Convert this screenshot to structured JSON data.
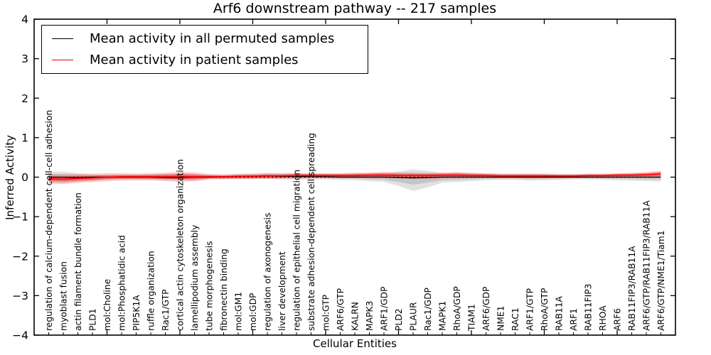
{
  "title": "Arf6 downstream pathway -- 217 samples",
  "legend": {
    "items": [
      {
        "label": "Mean activity in all permuted samples",
        "color": "#000000"
      },
      {
        "label": "Mean activity in patient samples",
        "color": "#ff0000"
      }
    ]
  },
  "chart_data": {
    "type": "line",
    "title": "Arf6 downstream pathway -- 217 samples",
    "xlabel": "Cellular Entities",
    "ylabel": "Inferred Activity",
    "ylim": [
      -4,
      4
    ],
    "yticks": [
      -4,
      -3,
      -2,
      -1,
      0,
      1,
      2,
      3,
      4
    ],
    "grid": false,
    "legend_position": "upper left",
    "categories": [
      "regulation of calcium-dependent cell-cell adhesion",
      "myoblast fusion",
      "actin filament bundle formation",
      "PLD1",
      "mol:Choline",
      "mol:Phosphatidic acid",
      "PIP5K1A",
      "ruffle organization",
      "Rac1/GTP",
      "cortical actin cytoskeleton organization",
      "lamellipodium assembly",
      "tube morphogenesis",
      "fibronectin binding",
      "mol:GM1",
      "mol:GDP",
      "regulation of axonogenesis",
      "liver development",
      "regulation of epithelial cell migration",
      "substrate adhesion-dependent cell spreading",
      "mol:GTP",
      "ARF6/GTP",
      "KALRN",
      "MAPK3",
      "ARF1/GDP",
      "PLD2",
      "PLAUR",
      "Rac1/GDP",
      "MAPK1",
      "RhoA/GDP",
      "TIAM1",
      "ARF6/GDP",
      "NME1",
      "RAC1",
      "ARF1/GTP",
      "RhoA/GTP",
      "RAB11A",
      "ARF1",
      "RAB11FIP3",
      "RHOA",
      "ARF6",
      "RAB11FIP3/RAB11A",
      "ARF6/GTP/RAB11FIP3/RAB11A",
      "ARF6/GTP/NME1/Tiam1"
    ],
    "series": [
      {
        "name": "Mean activity in all permuted samples",
        "color": "#000000",
        "width": 1.2,
        "values": [
          0,
          0,
          -0.01,
          0,
          0,
          0,
          0,
          0,
          -0.01,
          -0.01,
          0,
          0,
          0.01,
          0.02,
          0.02,
          0.03,
          0.02,
          0.02,
          0.01,
          0.01,
          0,
          0,
          0,
          0,
          -0.01,
          -0.02,
          -0.01,
          0,
          0,
          0,
          0,
          0,
          0,
          0,
          0,
          0,
          0,
          0,
          0,
          0,
          0,
          0,
          0
        ]
      },
      {
        "name": "Mean activity in patient samples",
        "color": "#ff0000",
        "width": 1.6,
        "values": [
          -0.04,
          -0.05,
          -0.03,
          -0.02,
          0,
          0.01,
          0.01,
          0.01,
          0.01,
          0.01,
          0.01,
          0.01,
          0.01,
          0.02,
          0.02,
          0.03,
          0.03,
          0.04,
          0.04,
          0.04,
          0.04,
          0.04,
          0.05,
          0.05,
          0.04,
          0.04,
          0.04,
          0.05,
          0.05,
          0.04,
          0.04,
          0.03,
          0.03,
          0.03,
          0.03,
          0.03,
          0.03,
          0.04,
          0.04,
          0.05,
          0.05,
          0.06,
          0.08
        ]
      }
    ],
    "bands": [
      {
        "name": "permuted-spread-outer",
        "color": "#aaaaaa",
        "opacity": 0.35,
        "upper": [
          0.13,
          0.14,
          0.1,
          0.07,
          0.06,
          0.06,
          0.06,
          0.07,
          0.08,
          0.09,
          0.08,
          0.06,
          0.06,
          0.08,
          0.08,
          0.1,
          0.09,
          0.08,
          0.07,
          0.07,
          0.07,
          0.08,
          0.09,
          0.1,
          0.14,
          0.2,
          0.16,
          0.1,
          0.1,
          0.09,
          0.08,
          0.07,
          0.07,
          0.08,
          0.07,
          0.06,
          0.06,
          0.06,
          0.06,
          0.07,
          0.08,
          0.09,
          0.1
        ],
        "lower": [
          -0.15,
          -0.16,
          -0.12,
          -0.08,
          -0.07,
          -0.06,
          -0.06,
          -0.07,
          -0.08,
          -0.09,
          -0.08,
          -0.05,
          -0.05,
          -0.05,
          -0.05,
          -0.05,
          -0.06,
          -0.06,
          -0.06,
          -0.06,
          -0.07,
          -0.08,
          -0.1,
          -0.12,
          -0.22,
          -0.35,
          -0.26,
          -0.14,
          -0.12,
          -0.1,
          -0.08,
          -0.07,
          -0.07,
          -0.09,
          -0.08,
          -0.07,
          -0.06,
          -0.06,
          -0.07,
          -0.08,
          -0.09,
          -0.1,
          -0.11
        ]
      },
      {
        "name": "permuted-spread-inner",
        "color": "#9a9a9a",
        "opacity": 0.4,
        "upper": [
          0.07,
          0.08,
          0.06,
          0.04,
          0.03,
          0.03,
          0.03,
          0.04,
          0.04,
          0.05,
          0.04,
          0.03,
          0.03,
          0.04,
          0.04,
          0.06,
          0.05,
          0.04,
          0.04,
          0.04,
          0.04,
          0.04,
          0.05,
          0.06,
          0.08,
          0.11,
          0.09,
          0.06,
          0.06,
          0.05,
          0.04,
          0.04,
          0.04,
          0.04,
          0.04,
          0.03,
          0.03,
          0.03,
          0.03,
          0.04,
          0.04,
          0.05,
          0.06
        ],
        "lower": [
          -0.08,
          -0.09,
          -0.07,
          -0.04,
          -0.04,
          -0.03,
          -0.03,
          -0.04,
          -0.04,
          -0.05,
          -0.04,
          -0.03,
          -0.03,
          -0.03,
          -0.03,
          -0.03,
          -0.03,
          -0.03,
          -0.03,
          -0.03,
          -0.04,
          -0.04,
          -0.06,
          -0.07,
          -0.12,
          -0.19,
          -0.14,
          -0.08,
          -0.07,
          -0.06,
          -0.04,
          -0.04,
          -0.04,
          -0.05,
          -0.04,
          -0.04,
          -0.03,
          -0.03,
          -0.04,
          -0.04,
          -0.05,
          -0.06,
          -0.06
        ]
      },
      {
        "name": "patient-spread-outer",
        "color": "#ff5555",
        "opacity": 0.3,
        "upper": [
          0.08,
          0.07,
          0.08,
          0.09,
          0.1,
          0.1,
          0.09,
          0.1,
          0.11,
          0.13,
          0.12,
          0.08,
          0.07,
          0.08,
          0.09,
          0.1,
          0.1,
          0.11,
          0.1,
          0.1,
          0.1,
          0.11,
          0.12,
          0.13,
          0.12,
          0.11,
          0.11,
          0.12,
          0.13,
          0.11,
          0.1,
          0.09,
          0.09,
          0.09,
          0.09,
          0.08,
          0.08,
          0.09,
          0.09,
          0.1,
          0.11,
          0.13,
          0.16
        ],
        "lower": [
          -0.16,
          -0.17,
          -0.14,
          -0.13,
          -0.1,
          -0.09,
          -0.08,
          -0.08,
          -0.1,
          -0.12,
          -0.11,
          -0.06,
          -0.05,
          -0.05,
          -0.04,
          -0.04,
          -0.04,
          -0.03,
          -0.03,
          -0.02,
          -0.02,
          -0.02,
          -0.02,
          -0.02,
          -0.03,
          -0.05,
          -0.05,
          -0.03,
          -0.02,
          -0.02,
          -0.02,
          -0.02,
          -0.02,
          -0.03,
          -0.03,
          -0.02,
          -0.02,
          -0.01,
          -0.01,
          -0.01,
          -0.01,
          0.0,
          0.0
        ]
      },
      {
        "name": "patient-spread-inner",
        "color": "#ee2222",
        "opacity": 0.45,
        "upper": [
          0.02,
          0.01,
          0.03,
          0.04,
          0.05,
          0.06,
          0.06,
          0.06,
          0.07,
          0.08,
          0.07,
          0.05,
          0.04,
          0.05,
          0.06,
          0.07,
          0.07,
          0.08,
          0.08,
          0.08,
          0.08,
          0.09,
          0.09,
          0.1,
          0.09,
          0.08,
          0.08,
          0.09,
          0.1,
          0.09,
          0.08,
          0.07,
          0.07,
          0.07,
          0.07,
          0.06,
          0.06,
          0.07,
          0.07,
          0.08,
          0.09,
          0.1,
          0.13
        ],
        "lower": [
          -0.1,
          -0.11,
          -0.09,
          -0.08,
          -0.05,
          -0.04,
          -0.04,
          -0.04,
          -0.05,
          -0.06,
          -0.06,
          -0.03,
          -0.03,
          -0.02,
          -0.02,
          -0.01,
          -0.01,
          0.0,
          0.0,
          0.0,
          0.0,
          0.0,
          0.0,
          0.01,
          0.0,
          -0.01,
          -0.01,
          0.0,
          0.01,
          0.0,
          0.0,
          0.0,
          0.0,
          -0.01,
          -0.01,
          0.0,
          0.0,
          0.01,
          0.01,
          0.01,
          0.02,
          0.02,
          0.03
        ]
      }
    ],
    "zero_line": {
      "value": 0,
      "style": "dashed",
      "color": "#000000"
    }
  }
}
